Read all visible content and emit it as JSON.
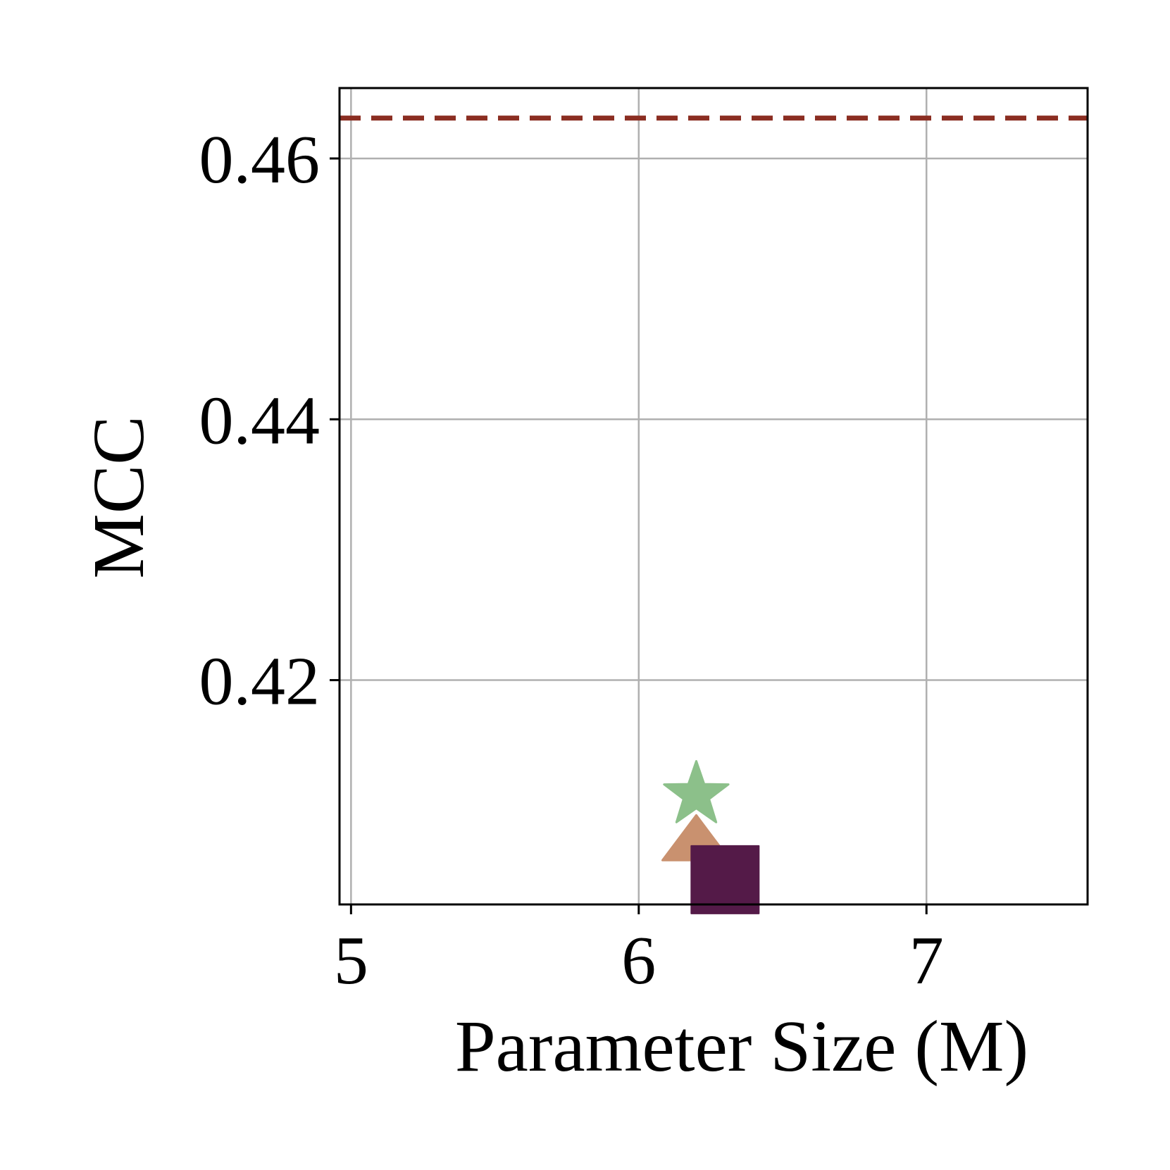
{
  "chart_data": {
    "type": "scatter",
    "title": "",
    "xlabel": "Parameter Size (M)",
    "ylabel": "MCC",
    "xlim": [
      4.96,
      7.56
    ],
    "ylim": [
      0.4028,
      0.4654
    ],
    "x_ticks": [
      5,
      6,
      7
    ],
    "x_tick_labels": [
      "5",
      "6",
      "7"
    ],
    "y_ticks": [
      0.42,
      0.44,
      0.46
    ],
    "y_tick_labels": [
      "0.42",
      "0.44",
      "0.46"
    ],
    "grid": true,
    "legend": "none",
    "points": [
      {
        "x": 6.2,
        "y": 0.4112,
        "marker": "star",
        "color": "#8cc08a"
      },
      {
        "x": 6.2,
        "y": 0.4075,
        "marker": "triangle",
        "color": "#c9916f"
      },
      {
        "x": 6.3,
        "y": 0.4047,
        "marker": "square",
        "color": "#541a48"
      }
    ],
    "reference_lines": [
      {
        "orientation": "horizontal",
        "y": 0.4631,
        "style": "dashed",
        "color": "#8b2e22"
      }
    ],
    "colors": {
      "grid": "#b0b0b0",
      "axes": "#000000"
    }
  }
}
